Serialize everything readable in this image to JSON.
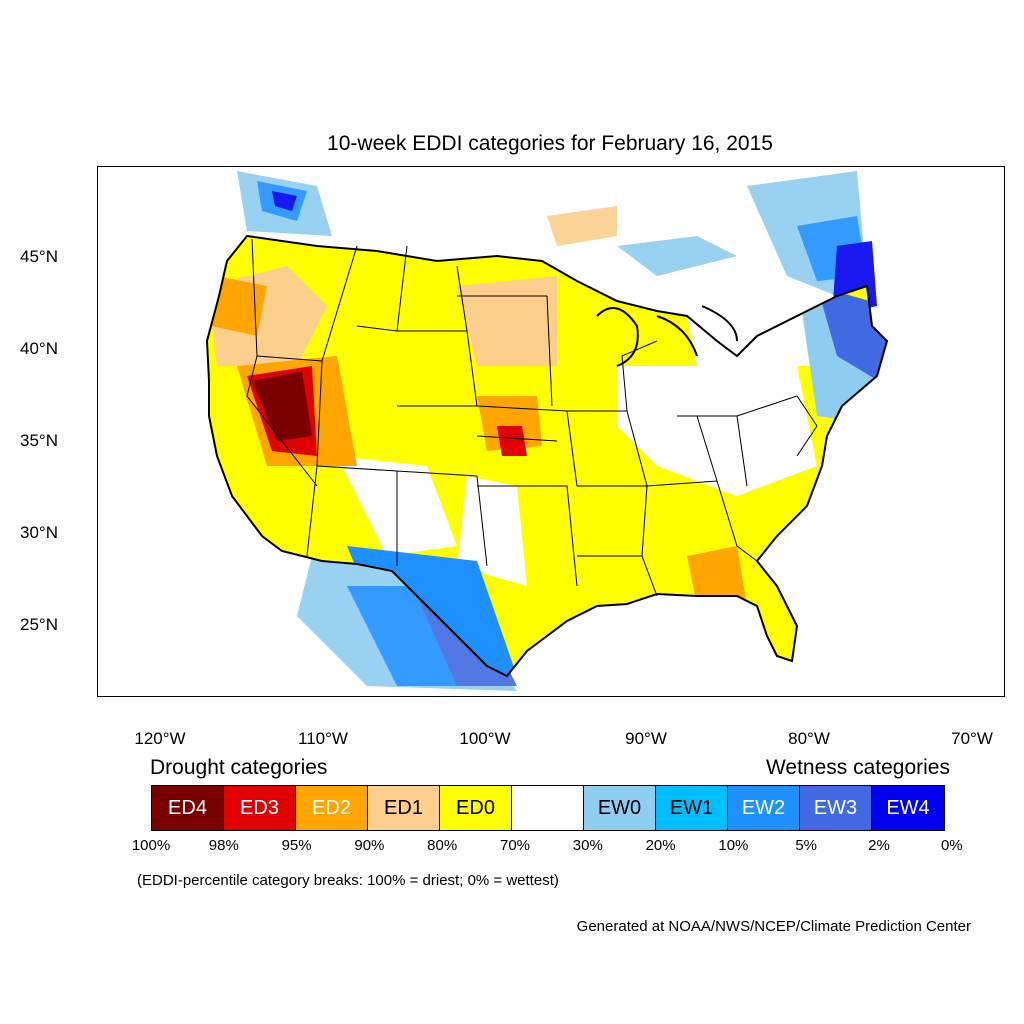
{
  "title": "10-week EDDI categories for February 16, 2015",
  "lat_ticks": [
    "45°N",
    "40°N",
    "35°N",
    "30°N",
    "25°N"
  ],
  "lon_ticks": [
    "120°W",
    "110°W",
    "100°W",
    "90°W",
    "80°W",
    "70°W"
  ],
  "legend": {
    "drought_heading": "Drought categories",
    "wetness_heading": "Wetness categories",
    "categories": [
      {
        "label": "ED4",
        "color": "#7a0000",
        "text_color": "#ffffff"
      },
      {
        "label": "ED3",
        "color": "#e00000",
        "text_color": "#ffffff"
      },
      {
        "label": "ED2",
        "color": "#ffa500",
        "text_color": "#ffffff"
      },
      {
        "label": "ED1",
        "color": "#fcd08c",
        "text_color": "#000000"
      },
      {
        "label": "ED0",
        "color": "#ffff00",
        "text_color": "#000000"
      },
      {
        "label": "",
        "color": "#ffffff",
        "text_color": "#000000"
      },
      {
        "label": "EW0",
        "color": "#8ecdf0",
        "text_color": "#000000"
      },
      {
        "label": "EW1",
        "color": "#00bfff",
        "text_color": "#000000"
      },
      {
        "label": "EW2",
        "color": "#1e90ff",
        "text_color": "#ffffff"
      },
      {
        "label": "EW3",
        "color": "#4169e1",
        "text_color": "#ffffff"
      },
      {
        "label": "EW4",
        "color": "#0000ee",
        "text_color": "#ffffff"
      }
    ],
    "breaks": [
      "100%",
      "98%",
      "95%",
      "90%",
      "80%",
      "70%",
      "30%",
      "20%",
      "10%",
      "5%",
      "2%",
      "0%"
    ]
  },
  "note": "(EDDI-percentile category breaks: 100% = driest; 0% = wettest)",
  "credit": "Generated at NOAA/NWS/NCEP/Climate Prediction Center"
}
